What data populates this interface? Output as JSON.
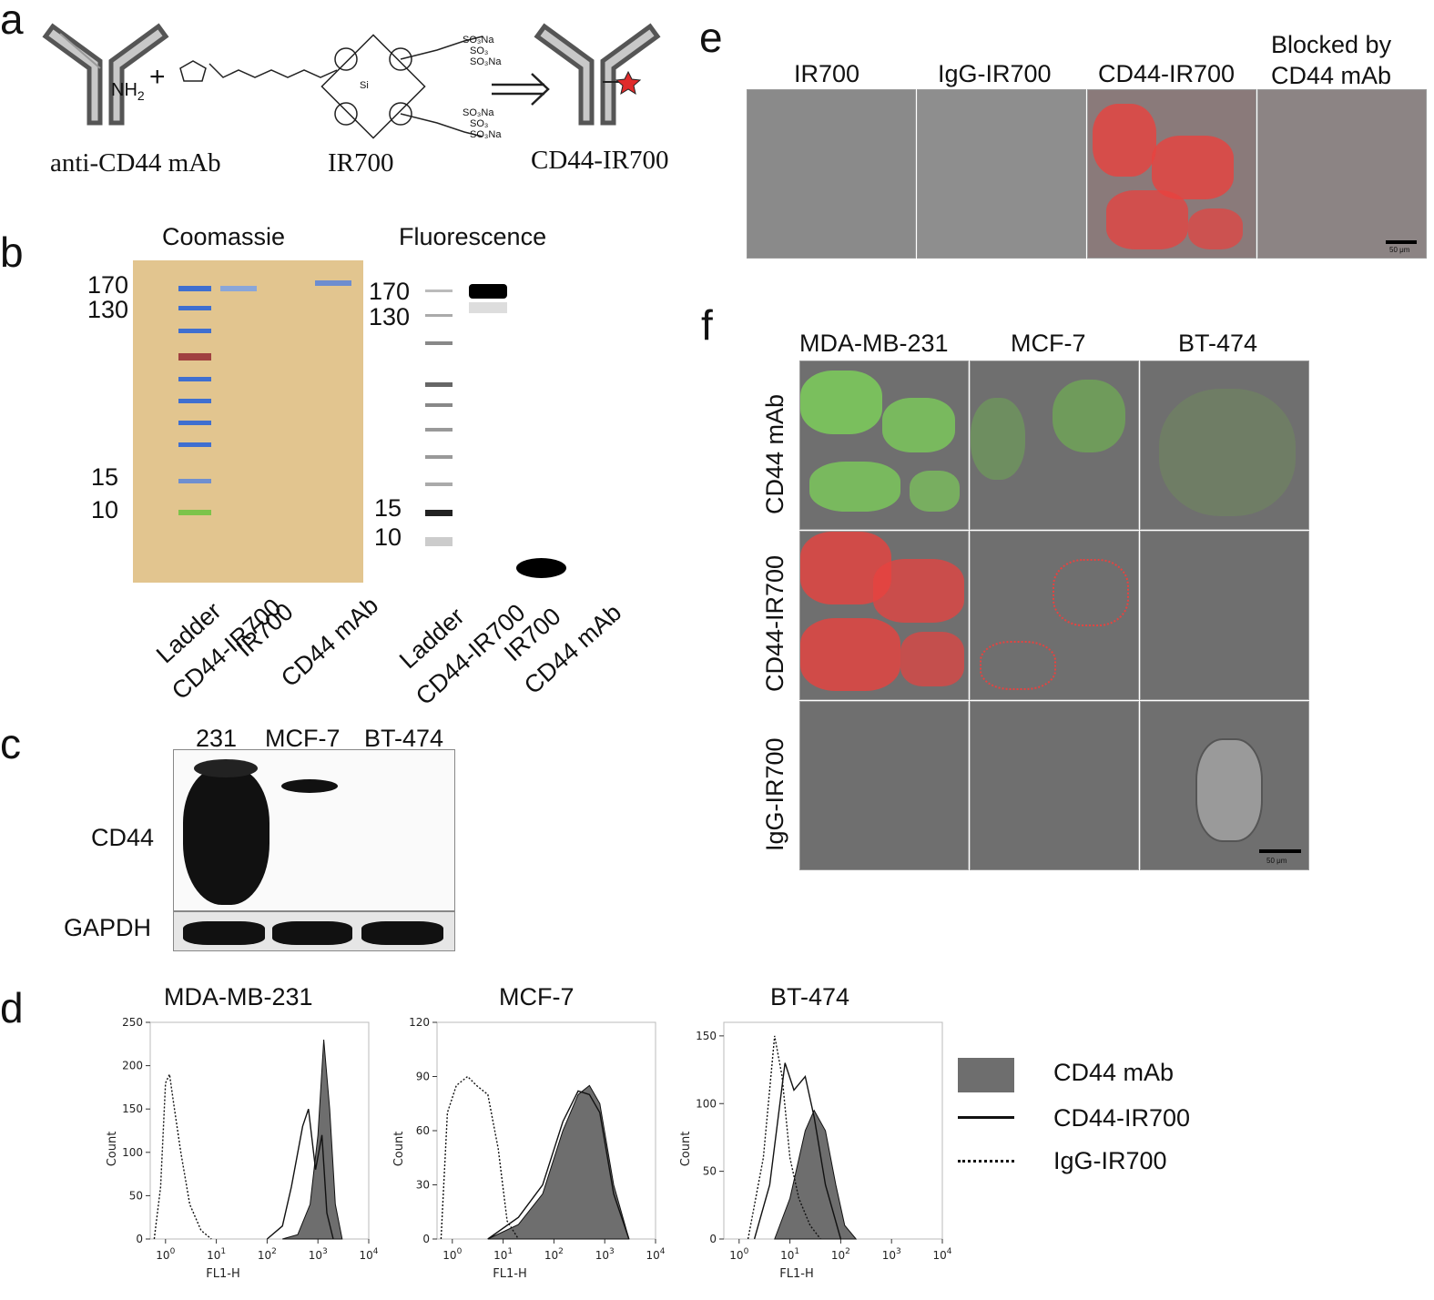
{
  "panels": {
    "a": "a",
    "b": "b",
    "c": "c",
    "d": "d",
    "e": "e",
    "f": "f"
  },
  "a": {
    "nh2": "NH",
    "nh2_sub": "2",
    "plus": "+",
    "antibody_label": "anti-CD44 mAb",
    "ir700_label": "IR700",
    "product_label": "CD44-IR700",
    "chem_texts": {
      "so3na_1": "SO₃Na",
      "so3_2": "SO₃",
      "so3na_3": "SO₃Na",
      "so3na_4": "SO₃Na",
      "so3_5": "SO₃",
      "so3na_6": "SO₃Na",
      "si": "Si",
      "o": "O",
      "n": "N",
      "h": "H"
    }
  },
  "b": {
    "coomassie_title": "Coomassie",
    "fluorescence_title": "Fluorescence",
    "coomassie_markers": [
      "170",
      "130",
      "15",
      "10"
    ],
    "fluor_markers": [
      "170",
      "130",
      "15",
      "10"
    ],
    "coomassie_lanes": [
      "Ladder",
      "CD44-IR700",
      "IR700",
      "CD44 mAb"
    ],
    "fluor_lanes": [
      "Ladder",
      "CD44-IR700",
      "IR700",
      "CD44 mAb"
    ]
  },
  "c": {
    "lanes": [
      "231",
      "MCF-7",
      "BT-474"
    ],
    "rows": [
      "CD44",
      "GAPDH"
    ]
  },
  "d": {
    "titles": [
      "MDA-MB-231",
      "MCF-7",
      "BT-474"
    ],
    "xlabel": "FL1-H",
    "ylabel": "Count",
    "legend": [
      "CD44 mAb",
      "CD44-IR700",
      "IgG-IR700"
    ]
  },
  "e": {
    "columns": [
      "IR700",
      "IgG-IR700",
      "CD44-IR700"
    ],
    "blocked_line1": "Blocked by",
    "blocked_line2": "CD44 mAb",
    "scalebar": "50 μm"
  },
  "f": {
    "columns": [
      "MDA-MB-231",
      "MCF-7",
      "BT-474"
    ],
    "rows": [
      "CD44 mAb",
      "CD44-IR700",
      "IgG-IR700"
    ],
    "scalebar": "50 μm"
  },
  "chart_data": [
    {
      "type": "area",
      "title": "MDA-MB-231",
      "xlabel": "FL1-H",
      "ylabel": "Count",
      "xscale": "log",
      "xlim": [
        0.5,
        10000
      ],
      "ylim": [
        0,
        250
      ],
      "yticks": [
        0,
        50,
        100,
        150,
        200,
        250
      ],
      "series": [
        {
          "name": "CD44 mAb",
          "style": "filled",
          "x": [
            200,
            400,
            700,
            1000,
            1300,
            1700,
            2200,
            3000
          ],
          "y": [
            0,
            5,
            40,
            120,
            230,
            150,
            40,
            0
          ]
        },
        {
          "name": "CD44-IR700",
          "style": "solid",
          "x": [
            100,
            200,
            300,
            500,
            650,
            900,
            1200,
            1500,
            2000
          ],
          "y": [
            0,
            15,
            60,
            130,
            150,
            80,
            120,
            30,
            0
          ]
        },
        {
          "name": "IgG-IR700",
          "style": "dotted",
          "x": [
            0.6,
            0.8,
            1.0,
            1.2,
            1.5,
            2.0,
            3.0,
            5.0,
            8.0
          ],
          "y": [
            0,
            60,
            180,
            190,
            150,
            100,
            40,
            10,
            0
          ]
        }
      ]
    },
    {
      "type": "area",
      "title": "MCF-7",
      "xlabel": "FL1-H",
      "ylabel": "Count",
      "xscale": "log",
      "xlim": [
        0.5,
        10000
      ],
      "ylim": [
        0,
        120
      ],
      "yticks": [
        0,
        30,
        60,
        90,
        120
      ],
      "series": [
        {
          "name": "CD44 mAb",
          "style": "filled",
          "x": [
            5,
            20,
            60,
            150,
            300,
            500,
            800,
            1500,
            3000
          ],
          "y": [
            0,
            8,
            25,
            60,
            80,
            85,
            75,
            30,
            0
          ]
        },
        {
          "name": "CD44-IR700",
          "style": "solid",
          "x": [
            5,
            20,
            60,
            150,
            300,
            500,
            800,
            1500,
            3000
          ],
          "y": [
            0,
            12,
            30,
            65,
            82,
            80,
            70,
            25,
            0
          ]
        },
        {
          "name": "IgG-IR700",
          "style": "dotted",
          "x": [
            0.6,
            0.8,
            1.2,
            2.0,
            3.0,
            5.0,
            8.0,
            12,
            20
          ],
          "y": [
            0,
            70,
            85,
            90,
            85,
            80,
            50,
            10,
            0
          ]
        }
      ]
    },
    {
      "type": "area",
      "title": "BT-474",
      "xlabel": "FL1-H",
      "ylabel": "Count",
      "xscale": "log",
      "xlim": [
        0.5,
        10000
      ],
      "ylim": [
        0,
        160
      ],
      "yticks": [
        0,
        50,
        100,
        150
      ],
      "series": [
        {
          "name": "CD44 mAb",
          "style": "filled",
          "x": [
            5,
            10,
            20,
            30,
            50,
            80,
            120,
            200
          ],
          "y": [
            0,
            30,
            80,
            95,
            80,
            40,
            10,
            0
          ]
        },
        {
          "name": "CD44-IR700",
          "style": "solid",
          "x": [
            2,
            4,
            8,
            12,
            20,
            30,
            50,
            100
          ],
          "y": [
            0,
            40,
            130,
            110,
            120,
            90,
            40,
            0
          ]
        },
        {
          "name": "IgG-IR700",
          "style": "dotted",
          "x": [
            1.5,
            3,
            5,
            7,
            10,
            15,
            25,
            40
          ],
          "y": [
            0,
            60,
            150,
            120,
            60,
            30,
            10,
            0
          ]
        }
      ]
    }
  ],
  "colors": {
    "mab_fill": "#6e6e6e",
    "red_stain": "#e8423f",
    "green_stain": "#7ed957",
    "micro_bg": "#6f6f6f",
    "ladder_blue": "#3f6fd0",
    "ladder_red": "#a04040",
    "ladder_green": "#7cc44a"
  }
}
